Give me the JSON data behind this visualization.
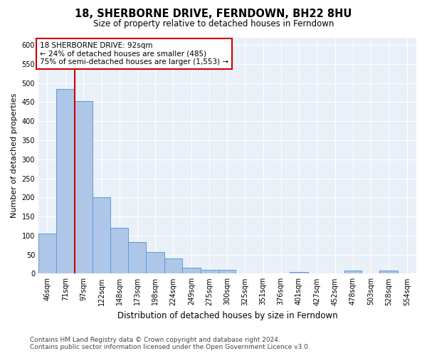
{
  "title": "18, SHERBORNE DRIVE, FERNDOWN, BH22 8HU",
  "subtitle": "Size of property relative to detached houses in Ferndown",
  "xlabel": "Distribution of detached houses by size in Ferndown",
  "ylabel": "Number of detached properties",
  "footer_line1": "Contains HM Land Registry data © Crown copyright and database right 2024.",
  "footer_line2": "Contains public sector information licensed under the Open Government Licence v3.0.",
  "property_label": "18 SHERBORNE DRIVE: 92sqm",
  "annotation_line1": "← 24% of detached houses are smaller (485)",
  "annotation_line2": "75% of semi-detached houses are larger (1,553) →",
  "bar_left_edges": [
    46,
    71,
    97,
    122,
    148,
    173,
    198,
    224,
    249,
    275,
    300,
    325,
    351,
    376,
    401,
    427,
    452,
    478,
    503,
    528,
    554
  ],
  "bar_heights": [
    105,
    485,
    453,
    200,
    120,
    82,
    57,
    40,
    15,
    10,
    10,
    0,
    0,
    0,
    5,
    0,
    0,
    8,
    0,
    8,
    0
  ],
  "bar_color": "#aec6e8",
  "bar_edge_color": "#5b9bd5",
  "vline_x": 97,
  "vline_color": "#cc0000",
  "annotation_box_color": "#cc0000",
  "background_color": "#eaf0f8",
  "ylim": [
    0,
    620
  ],
  "yticks": [
    0,
    50,
    100,
    150,
    200,
    250,
    300,
    350,
    400,
    450,
    500,
    550,
    600
  ],
  "grid_color": "#ffffff",
  "tick_label_fontsize": 7,
  "ylabel_fontsize": 8,
  "xlabel_fontsize": 8.5,
  "title_fontsize": 10.5,
  "subtitle_fontsize": 8.5,
  "annotation_fontsize": 7.5,
  "footer_fontsize": 6.5
}
